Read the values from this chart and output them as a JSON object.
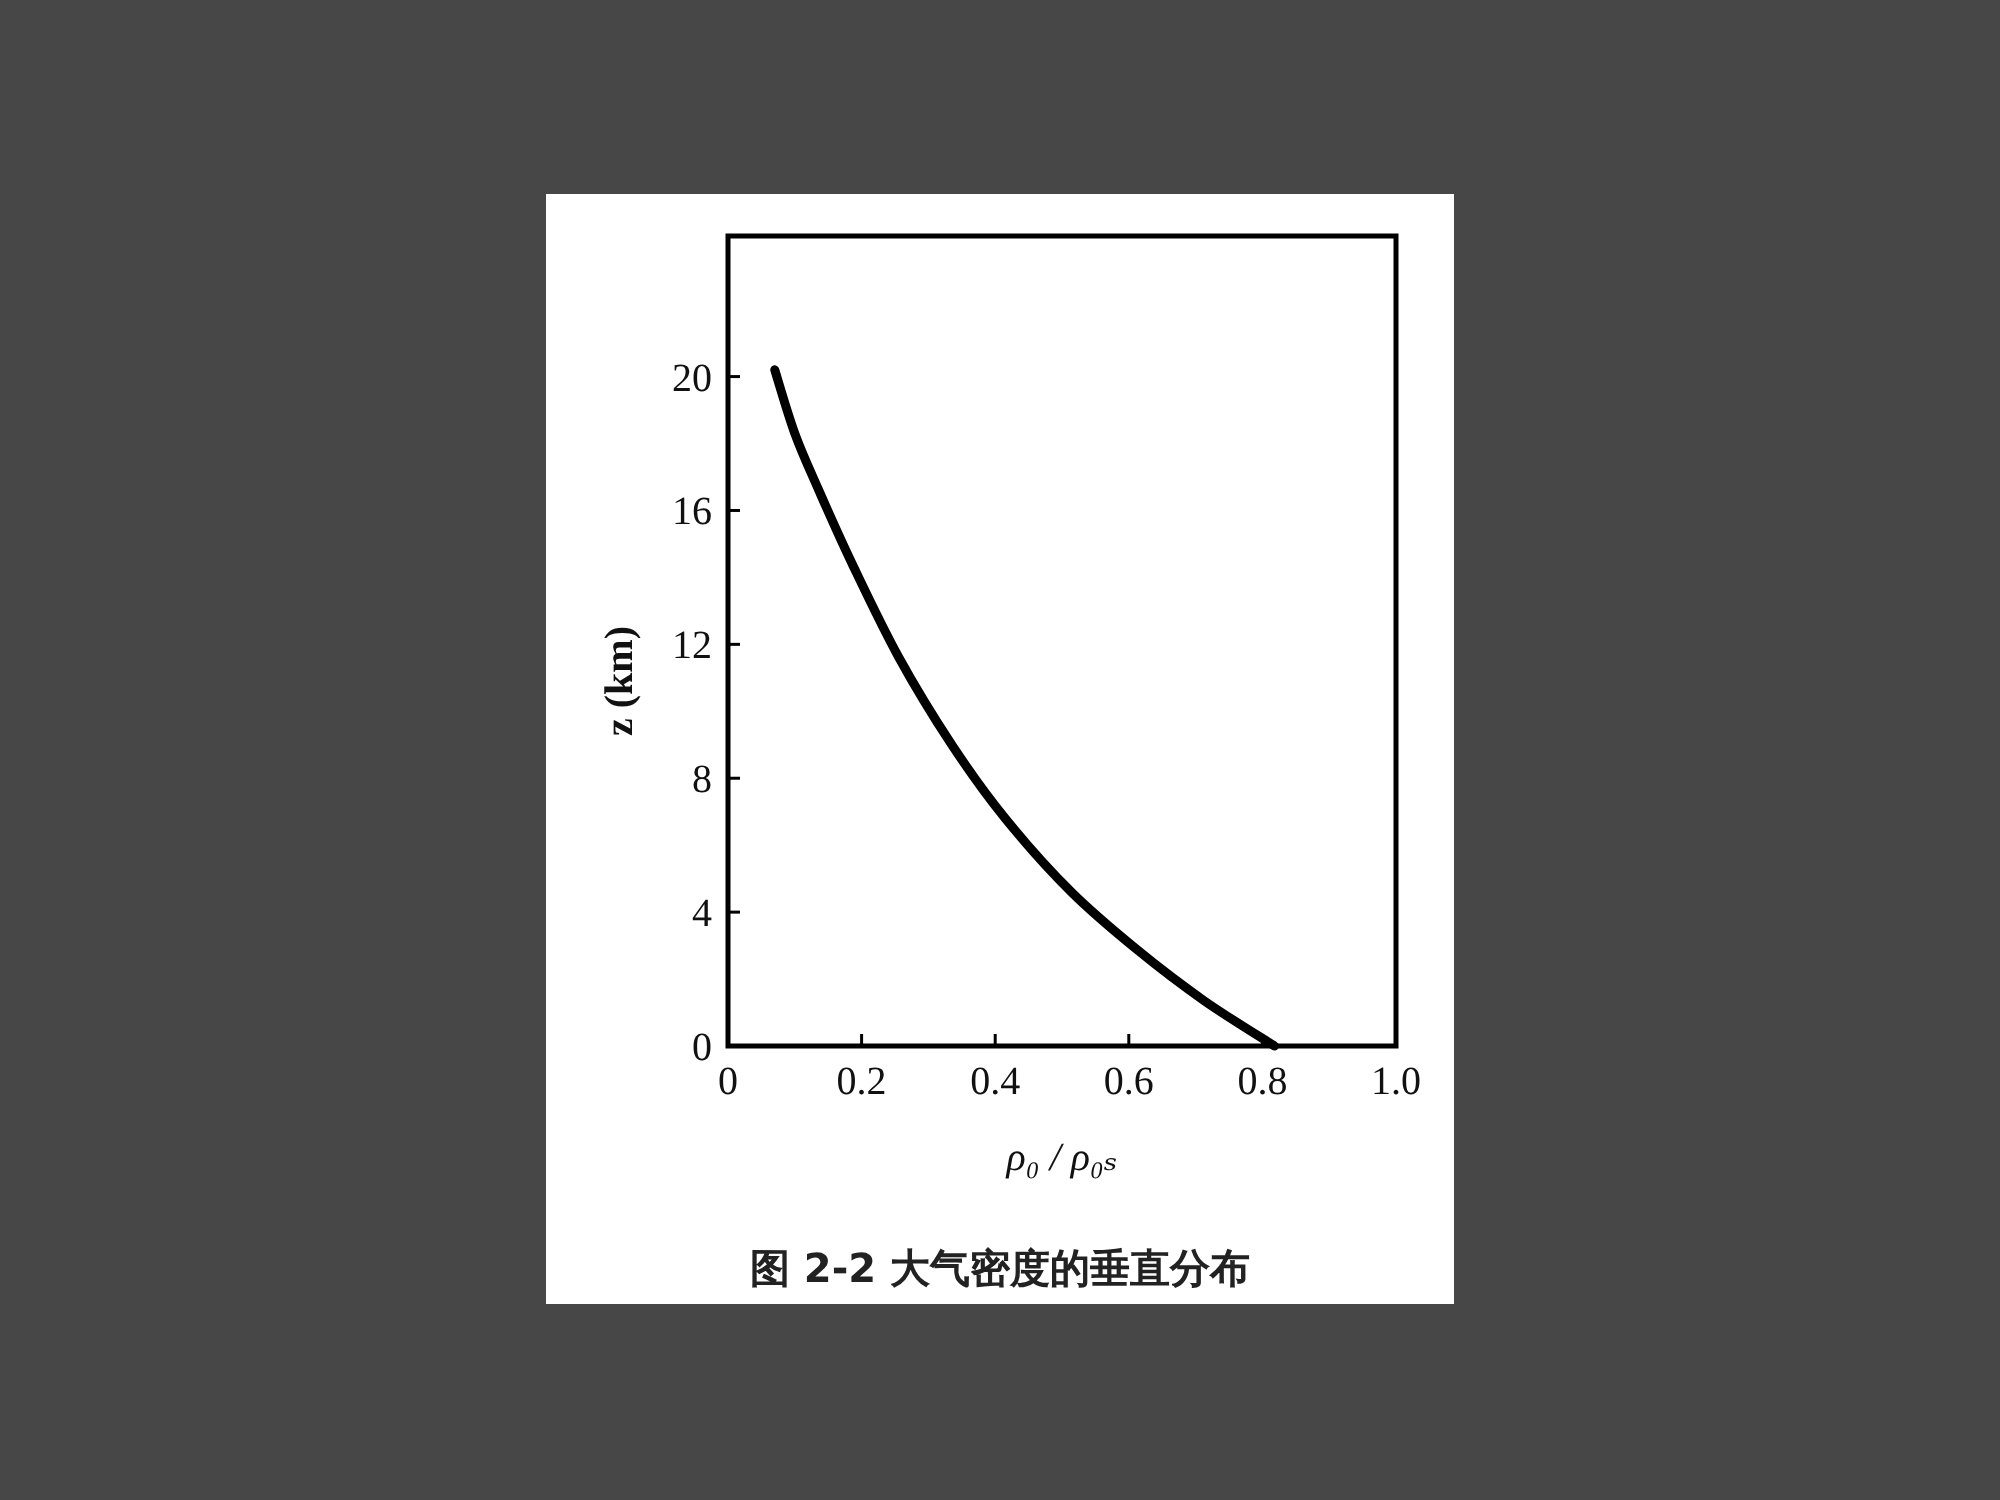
{
  "chart_data": {
    "type": "line",
    "xlabel": "ρ₀ / ρ₀ₛ",
    "ylabel": "z (km)",
    "annotations": [
      "图 2-2  大气密度的垂直分布"
    ],
    "series": [
      {
        "color": "#000000",
        "x": [
          0.07,
          0.1,
          0.136,
          0.186,
          0.256,
          0.335,
          0.415,
          0.514,
          0.614,
          0.713,
          0.818
        ],
        "values": [
          20.2,
          18.3,
          16.6,
          14.4,
          11.6,
          9,
          6.8,
          4.6,
          2.85,
          1.35,
          0
        ]
      }
    ],
    "xlim": [
      0,
      1
    ],
    "ylim": [
      0,
      24.2
    ],
    "xticks": [
      0,
      0.2,
      0.4,
      0.6,
      0.8,
      {
        "value": 1,
        "label": "1.0"
      }
    ],
    "yticks": [
      0,
      4,
      8,
      12,
      16,
      20
    ],
    "grid": false,
    "line_style": "solid"
  }
}
